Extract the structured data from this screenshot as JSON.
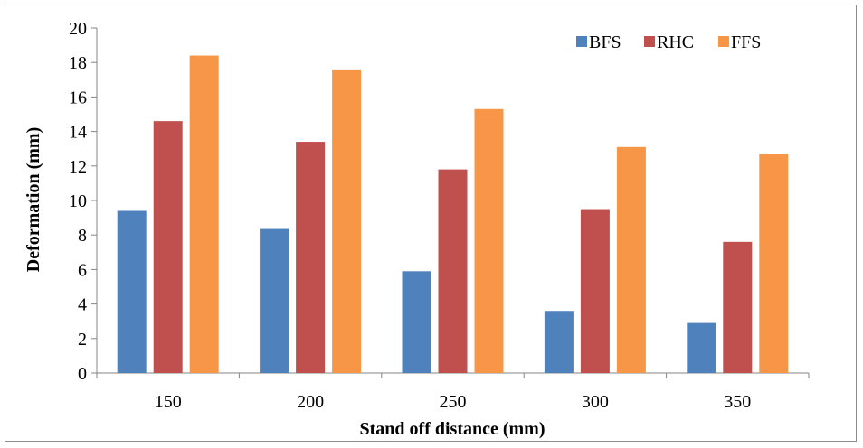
{
  "chart_data": {
    "type": "bar",
    "xlabel": "Stand off distance (mm)",
    "ylabel": "Deformation (mm)",
    "categories": [
      "150",
      "200",
      "250",
      "300",
      "350"
    ],
    "series": [
      {
        "name": "BFS",
        "color": "#4F81BD",
        "values": [
          9.4,
          8.4,
          5.9,
          3.6,
          2.9
        ]
      },
      {
        "name": "RHC",
        "color": "#C0504D",
        "values": [
          14.6,
          13.4,
          11.8,
          9.5,
          7.6
        ]
      },
      {
        "name": "FFS",
        "color": "#F79646",
        "values": [
          18.4,
          17.6,
          15.3,
          13.1,
          12.7
        ]
      }
    ],
    "ylim": [
      0,
      20
    ],
    "yticks": [
      "0",
      "2",
      "4",
      "6",
      "8",
      "10",
      "12",
      "14",
      "16",
      "18",
      "20"
    ],
    "grid": false,
    "legend_position": "top-right"
  }
}
